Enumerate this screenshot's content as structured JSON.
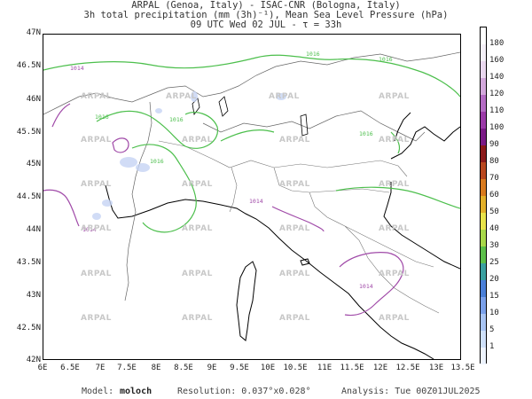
{
  "title": {
    "line1": "ARPAL (Genoa, Italy)  -  ISAC-CNR (Bologna, Italy)",
    "line2": "3h total precipitation (mm (3h)⁻¹), Mean Sea Level Pressure (hPa)",
    "line3": "09 UTC Wed 02 JUL  -  τ = 33h"
  },
  "axes": {
    "lat_labels": [
      "47N",
      "46.5N",
      "46N",
      "45.5N",
      "45N",
      "44.5N",
      "44N",
      "43.5N",
      "43N",
      "42.5N",
      "42N"
    ],
    "lon_labels": [
      "6E",
      "6.5E",
      "7E",
      "7.5E",
      "8E",
      "8.5E",
      "9E",
      "9.5E",
      "10E",
      "10.5E",
      "11E",
      "11.5E",
      "12E",
      "12.5E",
      "13E",
      "13.5E"
    ]
  },
  "colorbar": {
    "labels": [
      "180",
      "160",
      "140",
      "120",
      "110",
      "100",
      "90",
      "80",
      "70",
      "60",
      "50",
      "40",
      "30",
      "25",
      "20",
      "15",
      "10",
      "5",
      "1"
    ],
    "colors": [
      "#f5f0f8",
      "#ead8ef",
      "#d3a8dc",
      "#b46cc4",
      "#9b3aa8",
      "#7a1a86",
      "#8b1a1a",
      "#b8471e",
      "#d87a1e",
      "#e3b02a",
      "#e8e34a",
      "#a8d84a",
      "#5cbf4a",
      "#3aa0a0",
      "#4a7fd8",
      "#7aa0ea",
      "#a8c4f4",
      "#cfe0fa",
      "#eef4fe"
    ]
  },
  "isobars": {
    "green_labels": [
      "1016",
      "1016",
      "1016",
      "1016",
      "1016",
      "1016"
    ],
    "purple_labels": [
      "1014",
      "1014",
      "1014",
      "1014"
    ]
  },
  "watermark": "ARPAL",
  "footer": {
    "model_label": "Model:",
    "model_value": "moloch",
    "resolution": "Resolution: 0.037°x0.028°",
    "analysis": "Analysis: Tue 00Z01JUL2025"
  }
}
